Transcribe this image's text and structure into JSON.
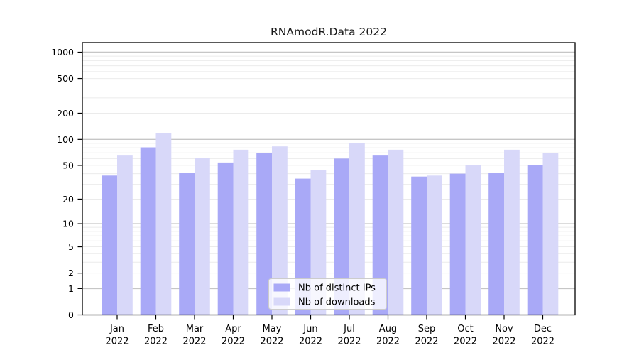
{
  "chart_data": {
    "type": "bar",
    "title": "RNAmodR.Data 2022",
    "categories": [
      "Jan",
      "Feb",
      "Mar",
      "Apr",
      "May",
      "Jun",
      "Jul",
      "Aug",
      "Sep",
      "Oct",
      "Nov",
      "Dec"
    ],
    "year_label": "2022",
    "series": [
      {
        "name": "Nb of distinct IPs",
        "color": "#a9a9f7",
        "values": [
          38,
          81,
          41,
          54,
          70,
          35,
          60,
          65,
          37,
          40,
          41,
          50
        ]
      },
      {
        "name": "Nb of downloads",
        "color": "#d8d8f9",
        "values": [
          65,
          118,
          61,
          76,
          83,
          44,
          90,
          76,
          38,
          50,
          76,
          70
        ]
      }
    ],
    "y_ticks": [
      0,
      1,
      2,
      5,
      10,
      20,
      50,
      100,
      200,
      500,
      1000
    ],
    "ylim": [
      0,
      1000
    ],
    "scale": "log1p",
    "grid": "horizontal, minor log lines",
    "legend_position": "bottom-center",
    "colors": {
      "axis": "#000000",
      "major_grid": "#c6c6c6",
      "minor_grid": "#ebebeb",
      "text": "#000000",
      "legend_border": "#cccccc"
    }
  }
}
